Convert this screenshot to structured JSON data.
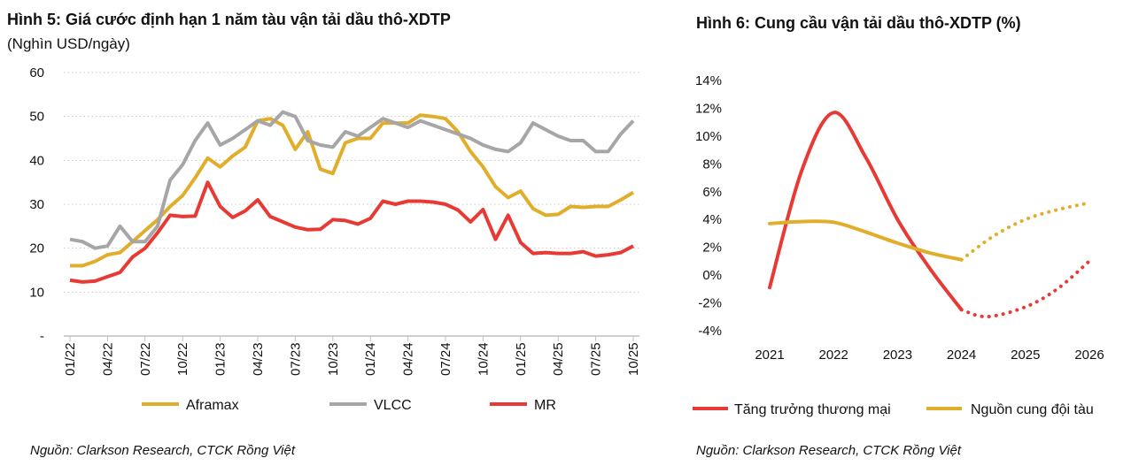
{
  "chart_data": [
    {
      "type": "line",
      "title": "Hình 5:  Giá cước định hạn 1 năm tàu vận tải dầu thô-XDTP",
      "subtitle": "(Nghìn USD/ngày)",
      "ylim": [
        0,
        60
      ],
      "yticks": [
        "-",
        "10",
        "20",
        "30",
        "40",
        "50",
        "60"
      ],
      "xticks": [
        "01/22",
        "04/22",
        "07/22",
        "10/22",
        "01/23",
        "04/23",
        "07/23",
        "10/23",
        "01/24",
        "04/24",
        "07/24",
        "10/24",
        "01/25",
        "04/25",
        "07/25",
        "10/25"
      ],
      "grid": true,
      "legend": "bottom",
      "series": [
        {
          "name": "Aframax",
          "color": "#E0AE2A",
          "values": [
            16,
            16,
            17,
            18.5,
            19,
            21.5,
            24,
            26.5,
            29.5,
            32,
            36,
            40.5,
            38.5,
            41,
            43,
            49,
            49.5,
            48,
            42.5,
            46.5,
            38,
            37,
            44,
            45,
            45,
            48.5,
            48.5,
            48.5,
            50.3,
            50,
            49.5,
            46.5,
            42,
            38.5,
            34,
            31.5,
            33,
            29,
            27.5,
            27.7,
            29.5,
            29.3,
            29.5,
            29.5,
            31,
            32.7
          ]
        },
        {
          "name": "VLCC",
          "color": "#A6A6A6",
          "values": [
            22,
            21.5,
            20,
            20.5,
            25,
            21.5,
            21.5,
            25,
            35.5,
            39,
            44.5,
            48.5,
            43.5,
            45,
            47,
            49,
            48,
            51,
            50,
            44.5,
            43.5,
            43,
            46.5,
            45.5,
            47.5,
            49.5,
            48.5,
            47.5,
            49,
            48,
            47,
            46,
            45,
            43.5,
            42.5,
            42,
            44,
            48.5,
            47,
            45.5,
            44.5,
            44.5,
            42,
            42,
            46,
            49
          ]
        },
        {
          "name": "MR",
          "color": "#E83A35",
          "values": [
            12.7,
            12.3,
            12.5,
            13.5,
            14.5,
            18,
            20,
            23.5,
            27.5,
            27.2,
            27.3,
            35,
            29.5,
            27,
            28.5,
            31,
            27.2,
            26,
            24.8,
            24.2,
            24.3,
            26.5,
            26.3,
            25.5,
            26.8,
            30.7,
            30,
            30.7,
            30.7,
            30.5,
            30,
            28.7,
            26,
            28.8,
            22,
            27.5,
            21.3,
            18.8,
            19,
            18.8,
            18.8,
            19.2,
            18.2,
            18.5,
            19,
            20.5
          ]
        }
      ],
      "source": "Nguồn: Clarkson Research, CTCK Rồng Việt"
    },
    {
      "type": "line",
      "title": "Hình 6: Cung cầu vận tải dầu thô-XDTP (%)",
      "ylim": [
        -4,
        14
      ],
      "yticks": [
        "-4%",
        "-2%",
        "0%",
        "2%",
        "4%",
        "6%",
        "8%",
        "10%",
        "12%",
        "14%"
      ],
      "xticks": [
        "2021",
        "2022",
        "2023",
        "2024",
        "2025",
        "2026"
      ],
      "grid": false,
      "legend": "bottom",
      "series": [
        {
          "name": "Tăng trưởng thương mại",
          "color": "#E83A35",
          "actual": [
            [
              2021,
              -0.9
            ],
            [
              2021.5,
              7.5
            ],
            [
              2022,
              11.7
            ],
            [
              2022.5,
              8.5
            ],
            [
              2023,
              4
            ],
            [
              2023.5,
              0.5
            ],
            [
              2024,
              -2.5
            ]
          ],
          "forecast": [
            [
              2024,
              -2.5
            ],
            [
              2024.4,
              -3.0
            ],
            [
              2025,
              -2.3
            ],
            [
              2025.5,
              -1
            ],
            [
              2026,
              1
            ]
          ]
        },
        {
          "name": "Nguồn cung đội tàu",
          "color": "#E0AE2A",
          "actual": [
            [
              2021,
              3.7
            ],
            [
              2021.5,
              3.85
            ],
            [
              2022,
              3.8
            ],
            [
              2022.5,
              3.1
            ],
            [
              2023,
              2.3
            ],
            [
              2023.5,
              1.6
            ],
            [
              2024,
              1.1
            ]
          ],
          "forecast": [
            [
              2024,
              1.1
            ],
            [
              2024.5,
              2.8
            ],
            [
              2025,
              4
            ],
            [
              2025.5,
              4.7
            ],
            [
              2026,
              5.2
            ]
          ]
        }
      ],
      "source": "Nguồn: Clarkson Research, CTCK Rồng Việt"
    }
  ]
}
